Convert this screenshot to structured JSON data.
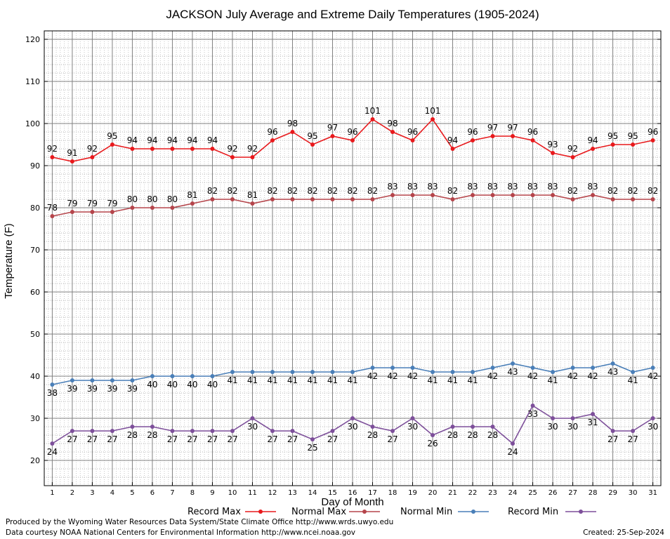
{
  "chart_data": {
    "type": "line",
    "title": "JACKSON July Average and Extreme Daily Temperatures (1905-2024)",
    "xlabel": "Day of Month",
    "ylabel": "Temperature (F)",
    "xlim": [
      0.6,
      31.4
    ],
    "ylim": [
      14,
      122
    ],
    "yticks": [
      20,
      30,
      40,
      50,
      60,
      70,
      80,
      90,
      100,
      110,
      120
    ],
    "x": [
      1,
      2,
      3,
      4,
      5,
      6,
      7,
      8,
      9,
      10,
      11,
      12,
      13,
      14,
      15,
      16,
      17,
      18,
      19,
      20,
      21,
      22,
      23,
      24,
      25,
      26,
      27,
      28,
      29,
      30,
      31
    ],
    "grid": true,
    "legend_position": "bottom",
    "series": [
      {
        "name": "Record Max",
        "color": "#e8191c",
        "label_pos": "above",
        "values": [
          92,
          91,
          92,
          95,
          94,
          94,
          94,
          94,
          94,
          92,
          92,
          96,
          98,
          95,
          97,
          96,
          101,
          98,
          96,
          101,
          94,
          96,
          97,
          97,
          96,
          93,
          92,
          94,
          95,
          95,
          96
        ]
      },
      {
        "name": "Normal Max",
        "color": "#b5454b",
        "label_pos": "above",
        "values": [
          78,
          79,
          79,
          79,
          80,
          80,
          80,
          81,
          82,
          82,
          81,
          82,
          82,
          82,
          82,
          82,
          82,
          83,
          83,
          83,
          82,
          83,
          83,
          83,
          83,
          83,
          82,
          83,
          82,
          82,
          82
        ]
      },
      {
        "name": "Normal Min",
        "color": "#4a7fb8",
        "label_pos": "below",
        "values": [
          38,
          39,
          39,
          39,
          39,
          40,
          40,
          40,
          40,
          41,
          41,
          41,
          41,
          41,
          41,
          41,
          42,
          42,
          42,
          41,
          41,
          41,
          42,
          43,
          42,
          41,
          42,
          42,
          43,
          41,
          42
        ]
      },
      {
        "name": "Record Min",
        "color": "#7d4f9a",
        "label_pos": "below",
        "values": [
          24,
          27,
          27,
          27,
          28,
          28,
          27,
          27,
          27,
          27,
          30,
          27,
          27,
          25,
          27,
          30,
          28,
          27,
          30,
          26,
          28,
          28,
          28,
          24,
          33,
          30,
          30,
          31,
          27,
          27,
          30
        ]
      }
    ]
  },
  "footer": {
    "produced_by": "Produced by the Wyoming Water Resources Data System/State Climate Office http://www.wrds.uwyo.edu",
    "courtesy": "Data courtesy NOAA National Centers for Environmental Information http://www.ncei.noaa.gov",
    "created": "Created:  25-Sep-2024"
  }
}
